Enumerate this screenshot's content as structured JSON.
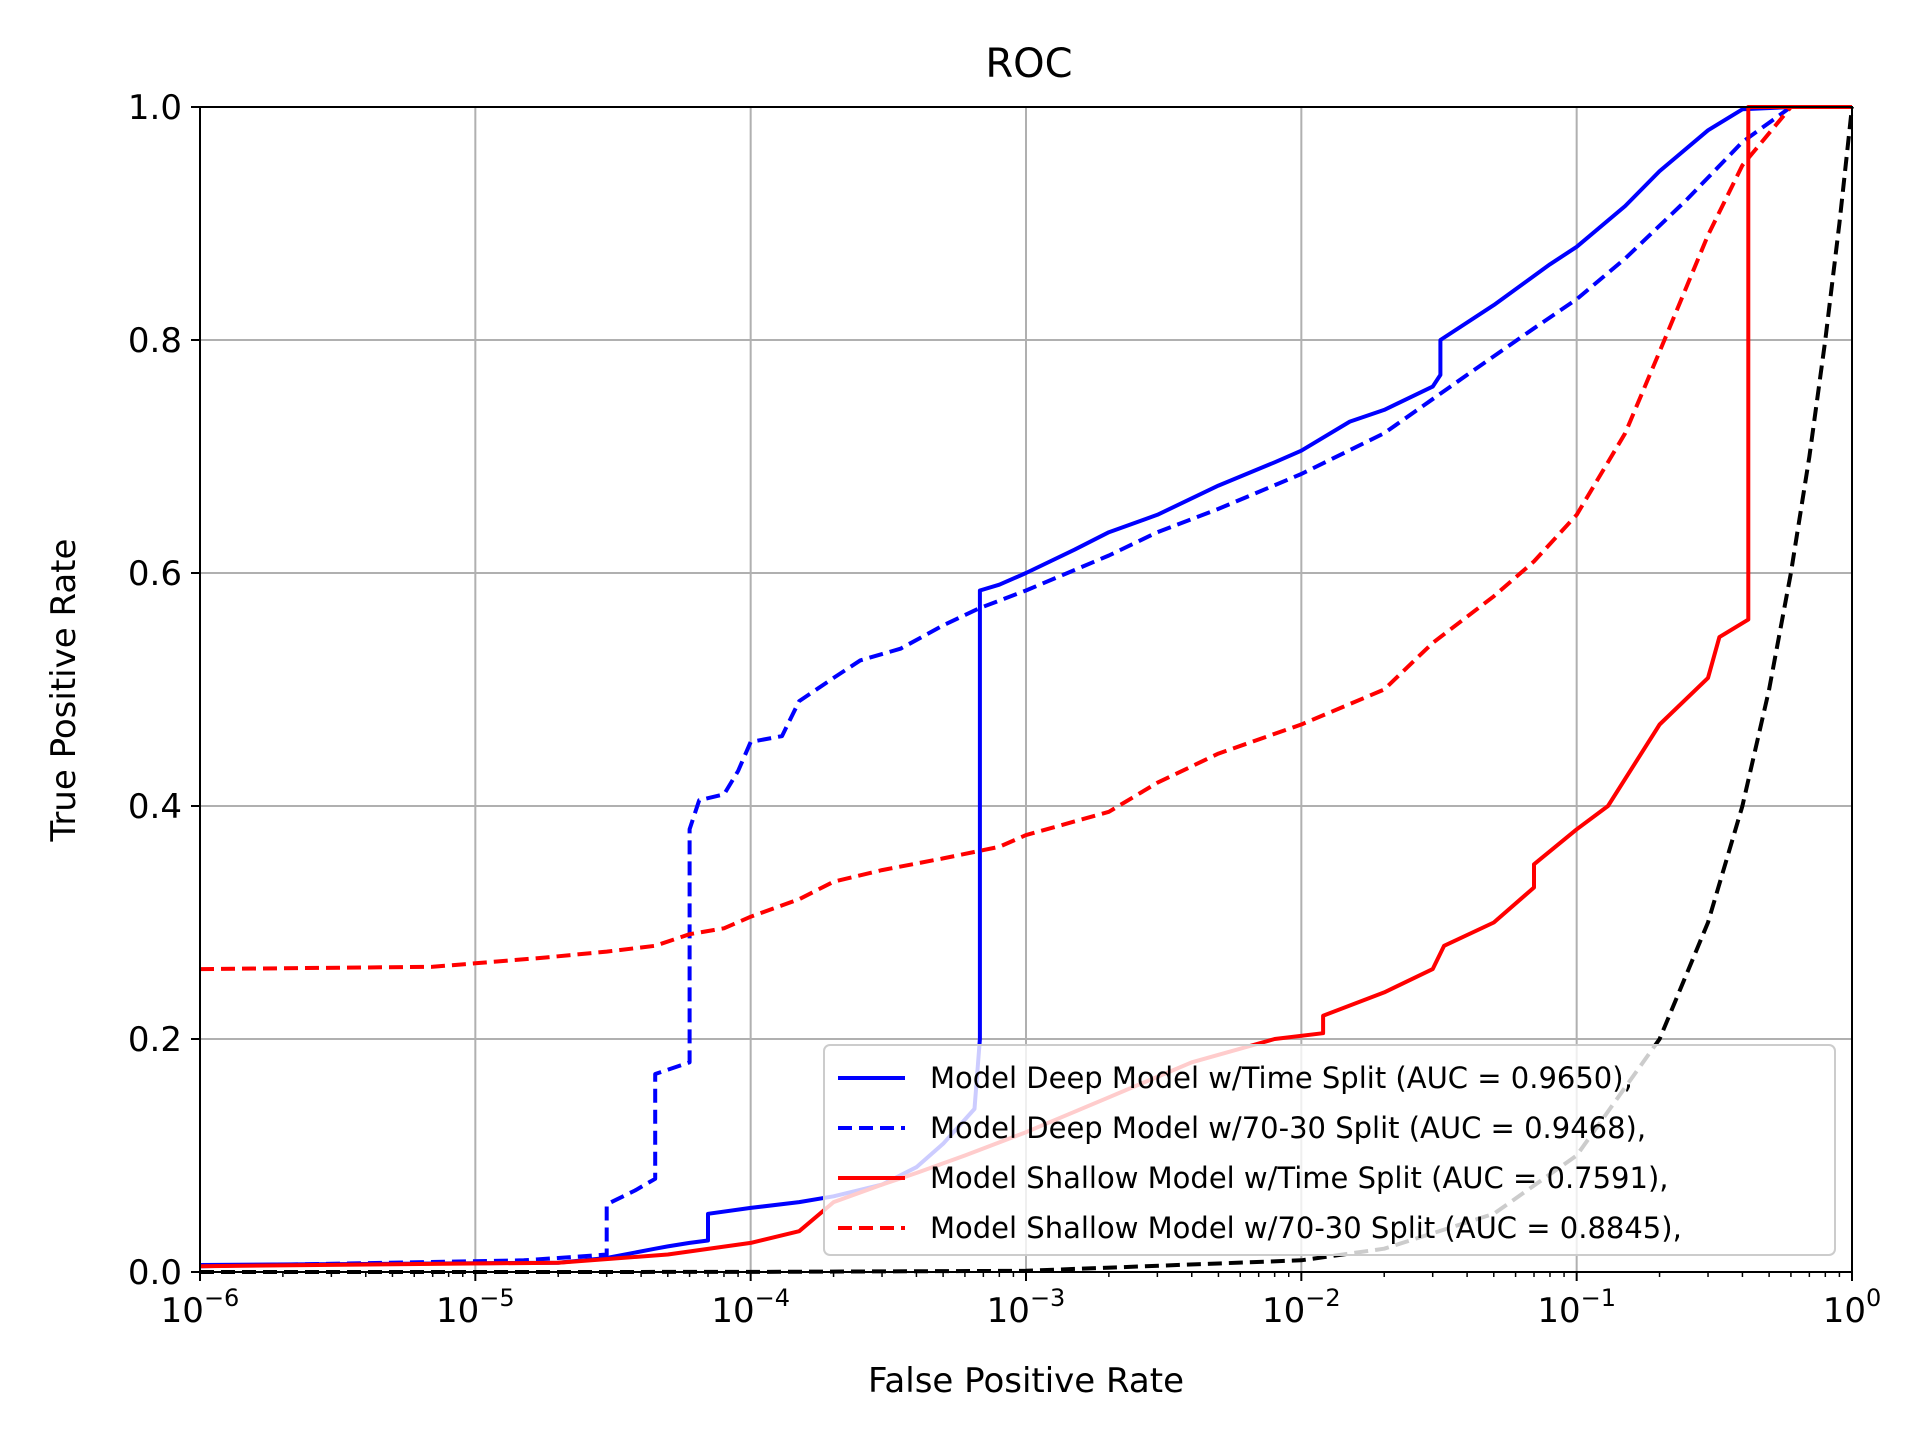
{
  "chart_data": {
    "type": "line",
    "title": "ROC",
    "xlabel": "False Positive Rate",
    "ylabel": "True Positive Rate",
    "xscale": "log",
    "xlim": [
      1e-06,
      1
    ],
    "ylim": [
      0.0,
      1.0
    ],
    "grid": true,
    "legend_position": "lower-right",
    "x_ticks": [
      {
        "value": 1e-06,
        "base": "10",
        "exp": "−6"
      },
      {
        "value": 1e-05,
        "base": "10",
        "exp": "−5"
      },
      {
        "value": 0.0001,
        "base": "10",
        "exp": "−4"
      },
      {
        "value": 0.001,
        "base": "10",
        "exp": "−3"
      },
      {
        "value": 0.01,
        "base": "10",
        "exp": "−2"
      },
      {
        "value": 0.1,
        "base": "10",
        "exp": "−1"
      },
      {
        "value": 1,
        "base": "10",
        "exp": "0"
      }
    ],
    "y_ticks": [
      {
        "value": 0.0,
        "label": "0.0"
      },
      {
        "value": 0.2,
        "label": "0.2"
      },
      {
        "value": 0.4,
        "label": "0.4"
      },
      {
        "value": 0.6,
        "label": "0.6"
      },
      {
        "value": 0.8,
        "label": "0.8"
      },
      {
        "value": 1.0,
        "label": "1.0"
      }
    ],
    "series": [
      {
        "name": "Model Deep Model w/Time Split  (AUC = 0.9650),",
        "color": "#0000ff",
        "dash": "solid",
        "x": [
          1e-06,
          2e-05,
          3e-05,
          4.5e-05,
          5e-05,
          6e-05,
          7e-05,
          7e-05,
          0.0001,
          0.00015,
          0.0002,
          0.0003,
          0.0004,
          0.0005,
          0.00065,
          0.00068,
          0.00068,
          0.0008,
          0.001,
          0.0015,
          0.002,
          0.003,
          0.005,
          0.008,
          0.01,
          0.015,
          0.02,
          0.03,
          0.032,
          0.032,
          0.05,
          0.08,
          0.1,
          0.15,
          0.2,
          0.3,
          0.4,
          0.6,
          1
        ],
        "y": [
          0.006,
          0.008,
          0.012,
          0.02,
          0.022,
          0.025,
          0.027,
          0.05,
          0.055,
          0.06,
          0.065,
          0.075,
          0.09,
          0.11,
          0.14,
          0.2,
          0.585,
          0.59,
          0.6,
          0.62,
          0.635,
          0.65,
          0.675,
          0.695,
          0.705,
          0.73,
          0.74,
          0.76,
          0.77,
          0.8,
          0.83,
          0.865,
          0.88,
          0.915,
          0.945,
          0.98,
          0.998,
          1.0,
          1.0
        ]
      },
      {
        "name": "Model Deep Model w/70-30 Split  (AUC = 0.9468),",
        "color": "#0000ff",
        "dash": "dashed",
        "x": [
          1e-06,
          1.5e-05,
          2e-05,
          3e-05,
          3e-05,
          3.8e-05,
          4.5e-05,
          4.5e-05,
          6e-05,
          6e-05,
          6.5e-05,
          8e-05,
          9e-05,
          0.0001,
          0.00013,
          0.00015,
          0.0002,
          0.00025,
          0.00035,
          0.0005,
          0.00068,
          0.001,
          0.002,
          0.003,
          0.005,
          0.01,
          0.02,
          0.04,
          0.07,
          0.1,
          0.15,
          0.25,
          0.4,
          0.6,
          1
        ],
        "y": [
          0.005,
          0.01,
          0.012,
          0.015,
          0.058,
          0.07,
          0.08,
          0.17,
          0.18,
          0.38,
          0.405,
          0.41,
          0.43,
          0.455,
          0.46,
          0.49,
          0.51,
          0.525,
          0.535,
          0.555,
          0.57,
          0.585,
          0.615,
          0.635,
          0.655,
          0.685,
          0.72,
          0.77,
          0.81,
          0.835,
          0.87,
          0.92,
          0.97,
          1.0,
          1.0
        ]
      },
      {
        "name": "Model Shallow Model w/Time Split  (AUC = 0.7591),",
        "color": "#ff0000",
        "dash": "solid",
        "x": [
          1e-06,
          2e-05,
          5e-05,
          0.0001,
          0.00015,
          0.0002,
          0.0003,
          0.0004,
          0.0006,
          0.001,
          0.002,
          0.004,
          0.008,
          0.012,
          0.012,
          0.02,
          0.03,
          0.033,
          0.05,
          0.07,
          0.07,
          0.1,
          0.13,
          0.2,
          0.3,
          0.33,
          0.42,
          0.42,
          0.5,
          1
        ],
        "y": [
          0.005,
          0.008,
          0.015,
          0.025,
          0.035,
          0.06,
          0.075,
          0.085,
          0.1,
          0.12,
          0.15,
          0.18,
          0.2,
          0.205,
          0.22,
          0.24,
          0.26,
          0.28,
          0.3,
          0.33,
          0.35,
          0.38,
          0.4,
          0.47,
          0.51,
          0.545,
          0.56,
          1.0,
          1.0,
          1.0
        ]
      },
      {
        "name": "Model Shallow Model w/70-30 Split  (AUC = 0.8845),",
        "color": "#ff0000",
        "dash": "dashed",
        "x": [
          1e-06,
          7e-06,
          1e-05,
          1.8e-05,
          3e-05,
          4.5e-05,
          6e-05,
          8e-05,
          0.0001,
          0.00015,
          0.0002,
          0.0003,
          0.0005,
          0.0008,
          0.001,
          0.002,
          0.003,
          0.005,
          0.01,
          0.02,
          0.03,
          0.05,
          0.07,
          0.1,
          0.15,
          0.2,
          0.3,
          0.4,
          0.6,
          1
        ],
        "y": [
          0.26,
          0.262,
          0.265,
          0.27,
          0.275,
          0.28,
          0.29,
          0.295,
          0.305,
          0.32,
          0.335,
          0.345,
          0.355,
          0.365,
          0.375,
          0.395,
          0.42,
          0.445,
          0.47,
          0.5,
          0.54,
          0.58,
          0.61,
          0.65,
          0.72,
          0.79,
          0.89,
          0.95,
          1.0,
          1.0
        ]
      },
      {
        "name": "",
        "color": "#000000",
        "dash": "dashed",
        "x": [
          1e-06,
          1e-05,
          0.0001,
          0.001,
          0.01,
          0.02,
          0.05,
          0.1,
          0.2,
          0.3,
          0.4,
          0.5,
          0.6,
          0.7,
          0.8,
          0.9,
          1
        ],
        "y": [
          1e-06,
          1e-05,
          0.0001,
          0.001,
          0.01,
          0.02,
          0.05,
          0.1,
          0.2,
          0.3,
          0.4,
          0.5,
          0.6,
          0.7,
          0.8,
          0.9,
          1.0
        ]
      }
    ]
  }
}
